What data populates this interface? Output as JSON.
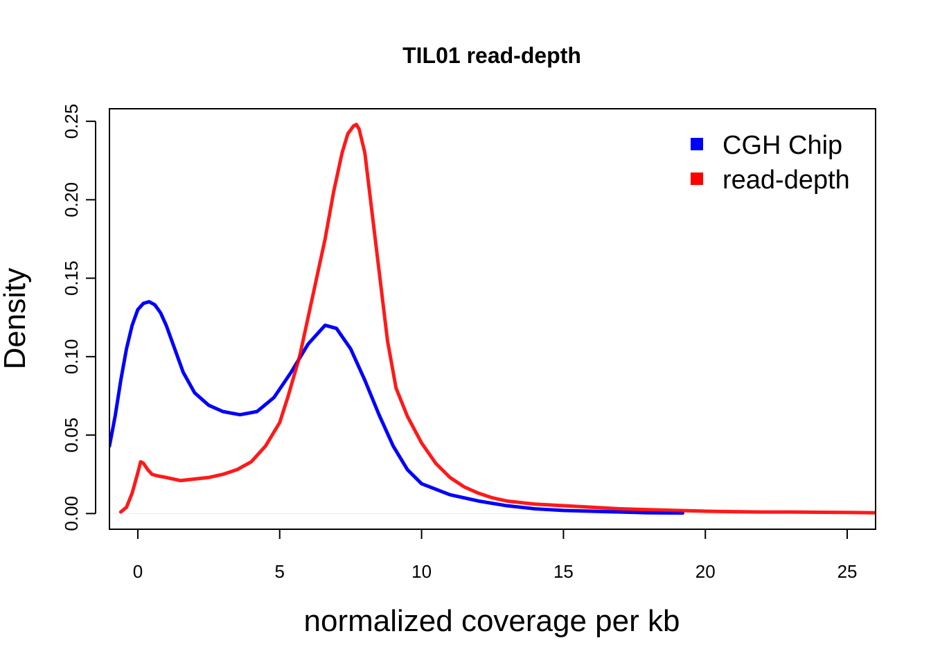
{
  "chart_data": {
    "type": "line",
    "title": "TIL01 read-depth",
    "xlabel": "normalized coverage per kb",
    "ylabel": "Density",
    "xlim": [
      -1,
      26
    ],
    "ylim": [
      -0.01,
      0.258
    ],
    "x_ticks": [
      0,
      5,
      10,
      15,
      20,
      25
    ],
    "x_tick_labels": [
      "0",
      "5",
      "10",
      "15",
      "20",
      "25"
    ],
    "y_ticks": [
      0.0,
      0.05,
      0.1,
      0.15,
      0.2,
      0.25
    ],
    "y_tick_labels": [
      "0.00",
      "0.05",
      "0.10",
      "0.15",
      "0.20",
      "0.25"
    ],
    "grid": false,
    "legend_position": "top-right",
    "series": [
      {
        "name": "CGH Chip",
        "color": "#0000ff",
        "x": [
          -1.0,
          -0.8,
          -0.6,
          -0.4,
          -0.2,
          0.0,
          0.2,
          0.4,
          0.6,
          0.8,
          1.0,
          1.3,
          1.6,
          2.0,
          2.5,
          3.0,
          3.6,
          4.2,
          4.8,
          5.4,
          6.0,
          6.6,
          7.0,
          7.5,
          8.0,
          8.5,
          9.0,
          9.5,
          10.0,
          11.0,
          12.0,
          13.0,
          14.0,
          15.0,
          16.0,
          17.0,
          18.0,
          19.2
        ],
        "y": [
          0.043,
          0.062,
          0.085,
          0.105,
          0.12,
          0.13,
          0.134,
          0.135,
          0.133,
          0.128,
          0.12,
          0.105,
          0.09,
          0.077,
          0.069,
          0.065,
          0.063,
          0.065,
          0.074,
          0.09,
          0.108,
          0.12,
          0.118,
          0.105,
          0.085,
          0.063,
          0.043,
          0.028,
          0.019,
          0.012,
          0.008,
          0.005,
          0.003,
          0.002,
          0.0015,
          0.001,
          0.0005,
          0.0003
        ]
      },
      {
        "name": "read-depth",
        "color": "#ff0000",
        "x": [
          -0.6,
          -0.4,
          -0.2,
          0.0,
          0.1,
          0.2,
          0.35,
          0.5,
          0.7,
          1.0,
          1.5,
          2.0,
          2.5,
          3.0,
          3.5,
          4.0,
          4.5,
          5.0,
          5.3,
          5.7,
          6.0,
          6.3,
          6.6,
          6.9,
          7.2,
          7.4,
          7.6,
          7.7,
          7.8,
          8.0,
          8.2,
          8.5,
          8.8,
          9.1,
          9.5,
          10.0,
          10.5,
          11.0,
          11.5,
          12.0,
          12.5,
          13.0,
          14.0,
          15.0,
          16.0,
          17.0,
          18.0,
          19.0,
          20.0,
          21.0,
          22.0,
          23.0,
          24.0,
          25.0,
          26.0
        ],
        "y": [
          0.001,
          0.004,
          0.013,
          0.026,
          0.033,
          0.032,
          0.028,
          0.025,
          0.024,
          0.023,
          0.021,
          0.022,
          0.023,
          0.025,
          0.028,
          0.033,
          0.043,
          0.058,
          0.075,
          0.1,
          0.125,
          0.15,
          0.175,
          0.205,
          0.23,
          0.242,
          0.247,
          0.248,
          0.245,
          0.23,
          0.2,
          0.155,
          0.11,
          0.08,
          0.062,
          0.045,
          0.032,
          0.023,
          0.017,
          0.013,
          0.01,
          0.008,
          0.006,
          0.005,
          0.004,
          0.003,
          0.0025,
          0.002,
          0.0015,
          0.0012,
          0.001,
          0.001,
          0.0008,
          0.0007,
          0.0005
        ]
      }
    ]
  }
}
